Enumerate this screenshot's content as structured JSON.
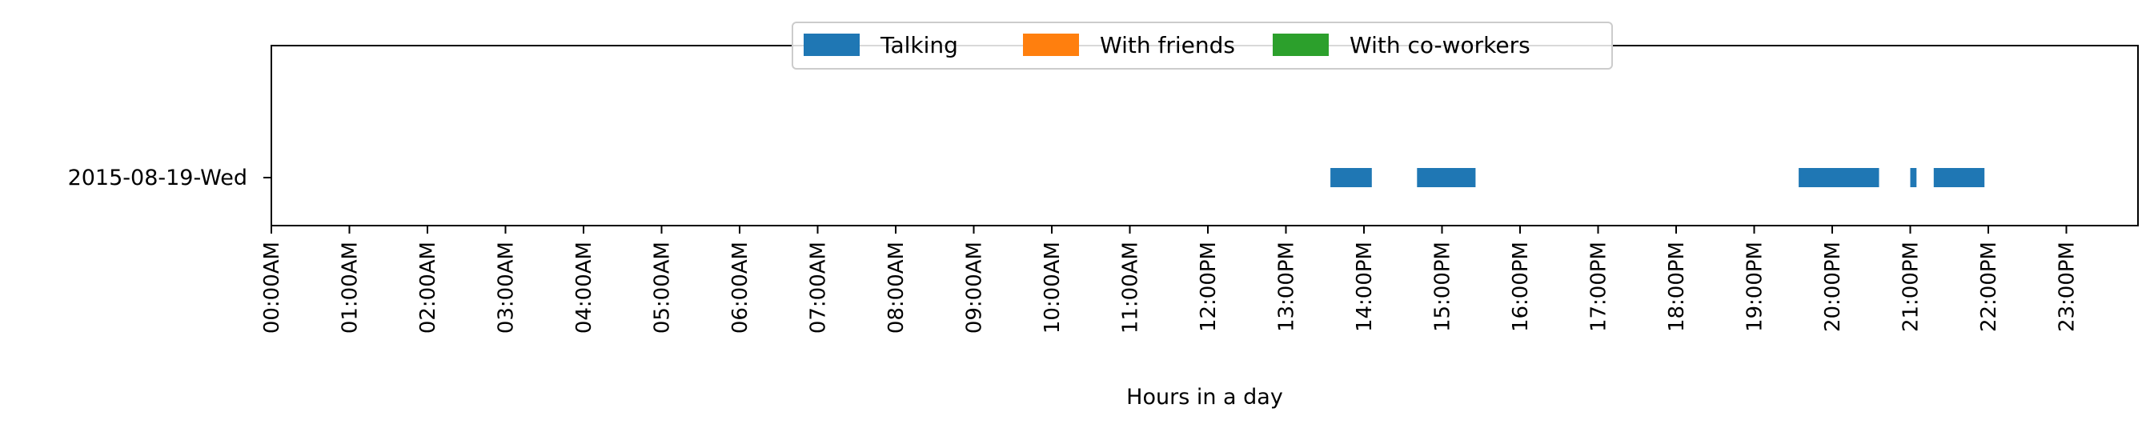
{
  "chart_data": {
    "type": "bar",
    "orientation": "horizontal-timeline",
    "xlabel": "Hours in a day",
    "xlim": [
      0,
      24
    ],
    "categories": [
      "2015-08-19-Wed"
    ],
    "x_ticks": [
      0,
      1,
      2,
      3,
      4,
      5,
      6,
      7,
      8,
      9,
      10,
      11,
      12,
      13,
      14,
      15,
      16,
      17,
      18,
      19,
      20,
      21,
      22,
      23
    ],
    "x_tick_labels": [
      "00:00AM",
      "01:00AM",
      "02:00AM",
      "03:00AM",
      "04:00AM",
      "05:00AM",
      "06:00AM",
      "07:00AM",
      "08:00AM",
      "09:00AM",
      "10:00AM",
      "11:00AM",
      "12:00PM",
      "13:00PM",
      "14:00PM",
      "15:00PM",
      "16:00PM",
      "17:00PM",
      "18:00PM",
      "19:00PM",
      "20:00PM",
      "21:00PM",
      "22:00PM",
      "23:00PM"
    ],
    "legend_placement": "top-center",
    "series": [
      {
        "name": "Talking",
        "color": "#1f77b4",
        "intervals": [
          {
            "category": "2015-08-19-Wed",
            "start": 13.57,
            "end": 14.1
          },
          {
            "category": "2015-08-19-Wed",
            "start": 14.68,
            "end": 15.43
          },
          {
            "category": "2015-08-19-Wed",
            "start": 19.57,
            "end": 20.6
          },
          {
            "category": "2015-08-19-Wed",
            "start": 21.0,
            "end": 21.08
          },
          {
            "category": "2015-08-19-Wed",
            "start": 21.3,
            "end": 21.95
          }
        ]
      },
      {
        "name": "With friends",
        "color": "#ff7f0e",
        "intervals": []
      },
      {
        "name": "With co-workers",
        "color": "#2ca02c",
        "intervals": []
      }
    ]
  }
}
